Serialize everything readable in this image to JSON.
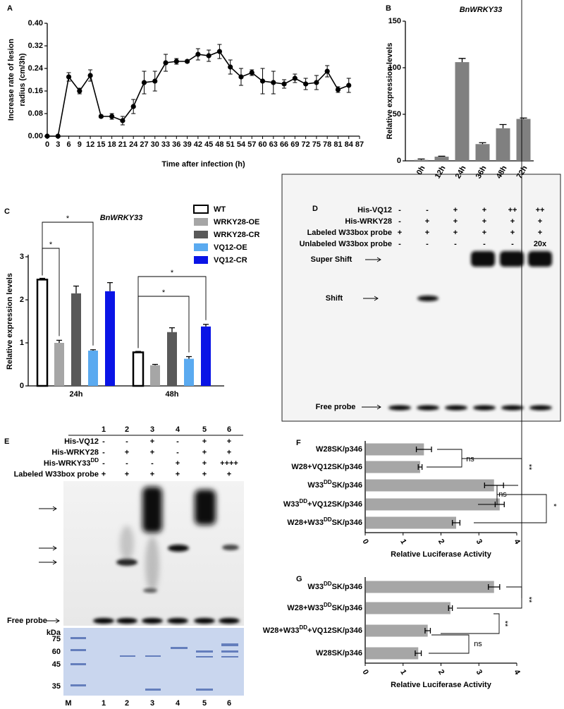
{
  "chart_data": [
    {
      "type": "line",
      "panel_label": "A",
      "xlabel": "Time after infection (h)",
      "ylabel": [
        "Increase rate of lesion",
        "radius (cm/3h)"
      ],
      "x": [
        0,
        3,
        6,
        9,
        12,
        15,
        18,
        21,
        24,
        27,
        30,
        33,
        36,
        39,
        42,
        45,
        48,
        51,
        54,
        57,
        60,
        63,
        66,
        69,
        72,
        75,
        78,
        81,
        84
      ],
      "values": [
        0,
        0,
        0.21,
        0.16,
        0.215,
        0.07,
        0.07,
        0.055,
        0.105,
        0.19,
        0.195,
        0.26,
        0.265,
        0.265,
        0.29,
        0.285,
        0.3,
        0.245,
        0.21,
        0.225,
        0.195,
        0.19,
        0.185,
        0.205,
        0.185,
        0.19,
        0.23,
        0.165,
        0.18
      ],
      "errors": [
        0,
        0,
        0.015,
        0.01,
        0.02,
        0.005,
        0.01,
        0.015,
        0.025,
        0.04,
        0.035,
        0.03,
        0.01,
        0.005,
        0.02,
        0.02,
        0.025,
        0.025,
        0.03,
        0.01,
        0.045,
        0.04,
        0.015,
        0.015,
        0.02,
        0.025,
        0.02,
        0.01,
        0.025
      ],
      "color": "#000000",
      "xlim": [
        0,
        87
      ],
      "xticks": [
        0,
        3,
        6,
        9,
        12,
        15,
        18,
        21,
        24,
        27,
        30,
        33,
        36,
        39,
        42,
        45,
        48,
        51,
        54,
        57,
        60,
        63,
        66,
        69,
        72,
        75,
        78,
        81,
        84,
        87
      ],
      "ylim": [
        0,
        0.4
      ],
      "yticks": [
        {
          "value": 0,
          "label": "0.00"
        },
        0.08,
        0.16,
        0.24,
        0.32,
        {
          "value": 0.4,
          "label": "0.40"
        }
      ]
    },
    {
      "type": "bar",
      "panel_label": "B",
      "title": "BnWRKY33",
      "ylabel": "Relative expression levels",
      "categories": [
        "0h",
        "12h",
        "24h",
        "36h",
        "48h",
        "72h"
      ],
      "values": [
        1,
        4.5,
        106,
        18,
        35,
        45
      ],
      "errors": [
        1,
        0.5,
        4,
        1.5,
        4,
        1
      ],
      "color": "#808080",
      "ylim": [
        0,
        150
      ],
      "yticks": [
        0,
        50,
        100,
        150
      ]
    },
    {
      "type": "grouped-bar",
      "panel_label": "C",
      "title": "BnWRKY33",
      "ylabel": "Relative expression levels",
      "categories": [
        "24h",
        "48h"
      ],
      "series": [
        {
          "name": "WT",
          "color": "#ffffff",
          "edgecolor": "#000000",
          "values": [
            2.47,
            0.78
          ],
          "errors": [
            0.03,
            0.02
          ]
        },
        {
          "name": "WRKY28-OE",
          "color": "#a6a6a6",
          "values": [
            1.0,
            0.48
          ],
          "errors": [
            0.06,
            0.02
          ]
        },
        {
          "name": "WRKY28-CR",
          "color": "#595959",
          "values": [
            2.15,
            1.25
          ],
          "errors": [
            0.17,
            0.1
          ]
        },
        {
          "name": "VQ12-OE",
          "color": "#5aaaf0",
          "values": [
            0.82,
            0.63
          ],
          "errors": [
            0.02,
            0.05
          ]
        },
        {
          "name": "VQ12-CR",
          "color": "#0a14e6",
          "values": [
            2.2,
            1.38
          ],
          "errors": [
            0.2,
            0.05
          ]
        }
      ],
      "ylim": [
        0,
        3
      ],
      "yticks": [
        0,
        1,
        2,
        3
      ],
      "annotations": [
        "*",
        "*",
        "*",
        "*"
      ]
    },
    {
      "type": "hbar",
      "panel_label": "F",
      "xlabel": "Relative Luciferase Activity",
      "categories": [
        [
          "W28SK/p346"
        ],
        [
          "W28+VQ12SK/p346"
        ],
        [
          "W33",
          "DD",
          "SK/p346"
        ],
        [
          "W33",
          "DD",
          "+VQ12SK/p346"
        ],
        [
          "W28+W33",
          "DD",
          "SK/p346"
        ]
      ],
      "values": [
        1.55,
        1.45,
        3.4,
        3.55,
        2.4
      ],
      "errors": [
        0.2,
        0.05,
        0.25,
        0.12,
        0.1
      ],
      "color": "#a6a6a6",
      "xlim": [
        0,
        4
      ],
      "xticks": [
        0,
        1,
        2,
        3,
        4
      ],
      "annotations": [
        "ns",
        "**",
        "ns",
        "*"
      ]
    },
    {
      "type": "hbar",
      "panel_label": "G",
      "xlabel": "Relative Luciferase Activity",
      "categories": [
        [
          "W33",
          "DD",
          "SK/p346"
        ],
        [
          "W28+W33",
          "DD",
          "SK/p346"
        ],
        [
          "W28+W33",
          "DD",
          "+VQ12SK/p346"
        ],
        [
          "W28SK/p346"
        ]
      ],
      "values": [
        3.4,
        2.25,
        1.65,
        1.4
      ],
      "errors": [
        0.15,
        0.05,
        0.07,
        0.08
      ],
      "color": "#a6a6a6",
      "xlim": [
        0,
        4
      ],
      "xticks": [
        0,
        1,
        2,
        3,
        4
      ],
      "annotations": [
        "**",
        "**",
        "ns"
      ]
    }
  ],
  "gel_d": {
    "panel_label": "D",
    "rows": [
      {
        "label": "His-VQ12",
        "cells": [
          "-",
          "-",
          "+",
          "+",
          "++",
          "++"
        ]
      },
      {
        "label": "His-WRKY28",
        "cells": [
          "-",
          "+",
          "+",
          "+",
          "+",
          "+"
        ]
      },
      {
        "label": "Labeled W33box probe",
        "cells": [
          "+",
          "+",
          "+",
          "+",
          "+",
          "+"
        ]
      },
      {
        "label": "Unlabeled W33box probe",
        "cells": [
          "-",
          "-",
          "-",
          "-",
          "-",
          "20x"
        ]
      }
    ],
    "band_labels": [
      "Super Shift",
      "Shift",
      "Free probe"
    ]
  },
  "gel_e": {
    "panel_label": "E",
    "lanes": [
      "1",
      "2",
      "3",
      "4",
      "5",
      "6"
    ],
    "rows": [
      {
        "label": [
          "His-VQ12"
        ],
        "cells": [
          "-",
          "-",
          "+",
          "-",
          "+",
          "+"
        ]
      },
      {
        "label": [
          "His-WRKY28"
        ],
        "cells": [
          "-",
          "+",
          "+",
          "-",
          "+",
          "+"
        ]
      },
      {
        "label": [
          "His-WRKY33",
          "DD"
        ],
        "cells": [
          "-",
          "-",
          "-",
          "+",
          "+",
          "++++"
        ]
      },
      {
        "label": [
          "Labeled W33box probe"
        ],
        "cells": [
          "+",
          "+",
          "+",
          "+",
          "+",
          "+"
        ]
      }
    ],
    "band_label": "Free probe",
    "marker_unit": "kDa",
    "markers": [
      "75",
      "60",
      "45",
      "35"
    ],
    "lane_labels": [
      "M",
      "1",
      "2",
      "3",
      "4",
      "5",
      "6"
    ]
  }
}
